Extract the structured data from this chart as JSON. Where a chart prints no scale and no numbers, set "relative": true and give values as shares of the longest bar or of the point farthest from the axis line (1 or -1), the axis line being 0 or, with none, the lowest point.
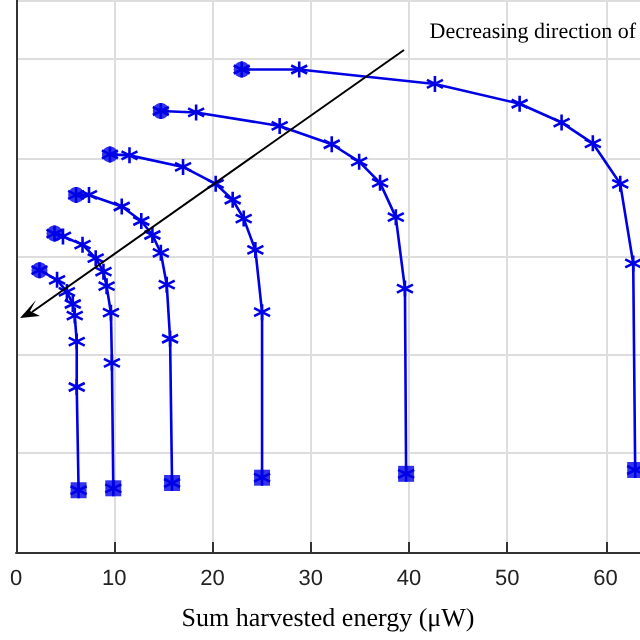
{
  "chart_data": {
    "type": "line",
    "relative": true,
    "xlabel": "Sum harvested energy (μW)",
    "xlim": [
      0,
      63.5
    ],
    "xticks": [
      0,
      10,
      20,
      30,
      40,
      50,
      60
    ],
    "grid": true,
    "marker": "cross",
    "line_style": "solid",
    "annotations": [
      "Decreasing direction of"
    ],
    "series": [
      {
        "color": "#0000e6",
        "x": [
          2.39,
          4.18,
          5.18,
          5.78,
          5.98,
          6.18,
          6.18,
          6.37
        ],
        "values": [
          0.584,
          0.564,
          0.539,
          0.514,
          0.49,
          0.436,
          0.342,
          0.128
        ]
      },
      {
        "color": "#0000e6",
        "x": [
          3.92,
          4.78,
          6.77,
          8.11,
          8.9,
          9.22,
          9.66,
          9.76,
          9.9
        ],
        "values": [
          0.66,
          0.654,
          0.637,
          0.609,
          0.581,
          0.551,
          0.496,
          0.392,
          0.132
        ]
      },
      {
        "color": "#0000e6",
        "x": [
          6.12,
          7.43,
          10.76,
          12.75,
          13.88,
          14.74,
          15.34,
          15.68,
          15.88
        ],
        "values": [
          0.74,
          0.74,
          0.716,
          0.686,
          0.657,
          0.62,
          0.554,
          0.442,
          0.143
        ]
      },
      {
        "color": "#0000e6",
        "x": [
          9.56,
          11.55,
          17.0,
          20.32,
          22.05,
          23.17,
          24.36,
          25.04,
          25.04
        ],
        "values": [
          0.824,
          0.822,
          0.798,
          0.763,
          0.73,
          0.691,
          0.626,
          0.497,
          0.154
        ]
      },
      {
        "color": "#0000e6",
        "x": [
          14.74,
          18.33,
          26.83,
          32.13,
          34.92,
          37.05,
          38.65,
          39.58,
          39.7
        ],
        "values": [
          0.914,
          0.911,
          0.883,
          0.845,
          0.809,
          0.765,
          0.694,
          0.546,
          0.162
        ]
      },
      {
        "color": "#0000e6",
        "x": [
          22.97,
          28.82,
          42.63,
          51.25,
          55.52,
          58.7,
          61.49,
          62.81,
          63.01
        ],
        "values": [
          1.0,
          1.0,
          0.97,
          0.929,
          0.89,
          0.847,
          0.763,
          0.598,
          0.17
        ]
      },
      {
        "type": "scatter",
        "marker": "circle",
        "color": "#0000e6",
        "x": [
          2.39,
          3.92,
          6.12,
          9.56,
          14.74,
          22.97
        ],
        "values": [
          0.584,
          0.66,
          0.74,
          0.824,
          0.914,
          1.0
        ]
      },
      {
        "type": "scatter",
        "marker": "square",
        "color": "#0000e6",
        "x": [
          6.37,
          9.9,
          15.88,
          25.04,
          39.7,
          63.01
        ],
        "values": [
          0.128,
          0.132,
          0.143,
          0.154,
          0.162,
          0.17
        ]
      }
    ]
  }
}
